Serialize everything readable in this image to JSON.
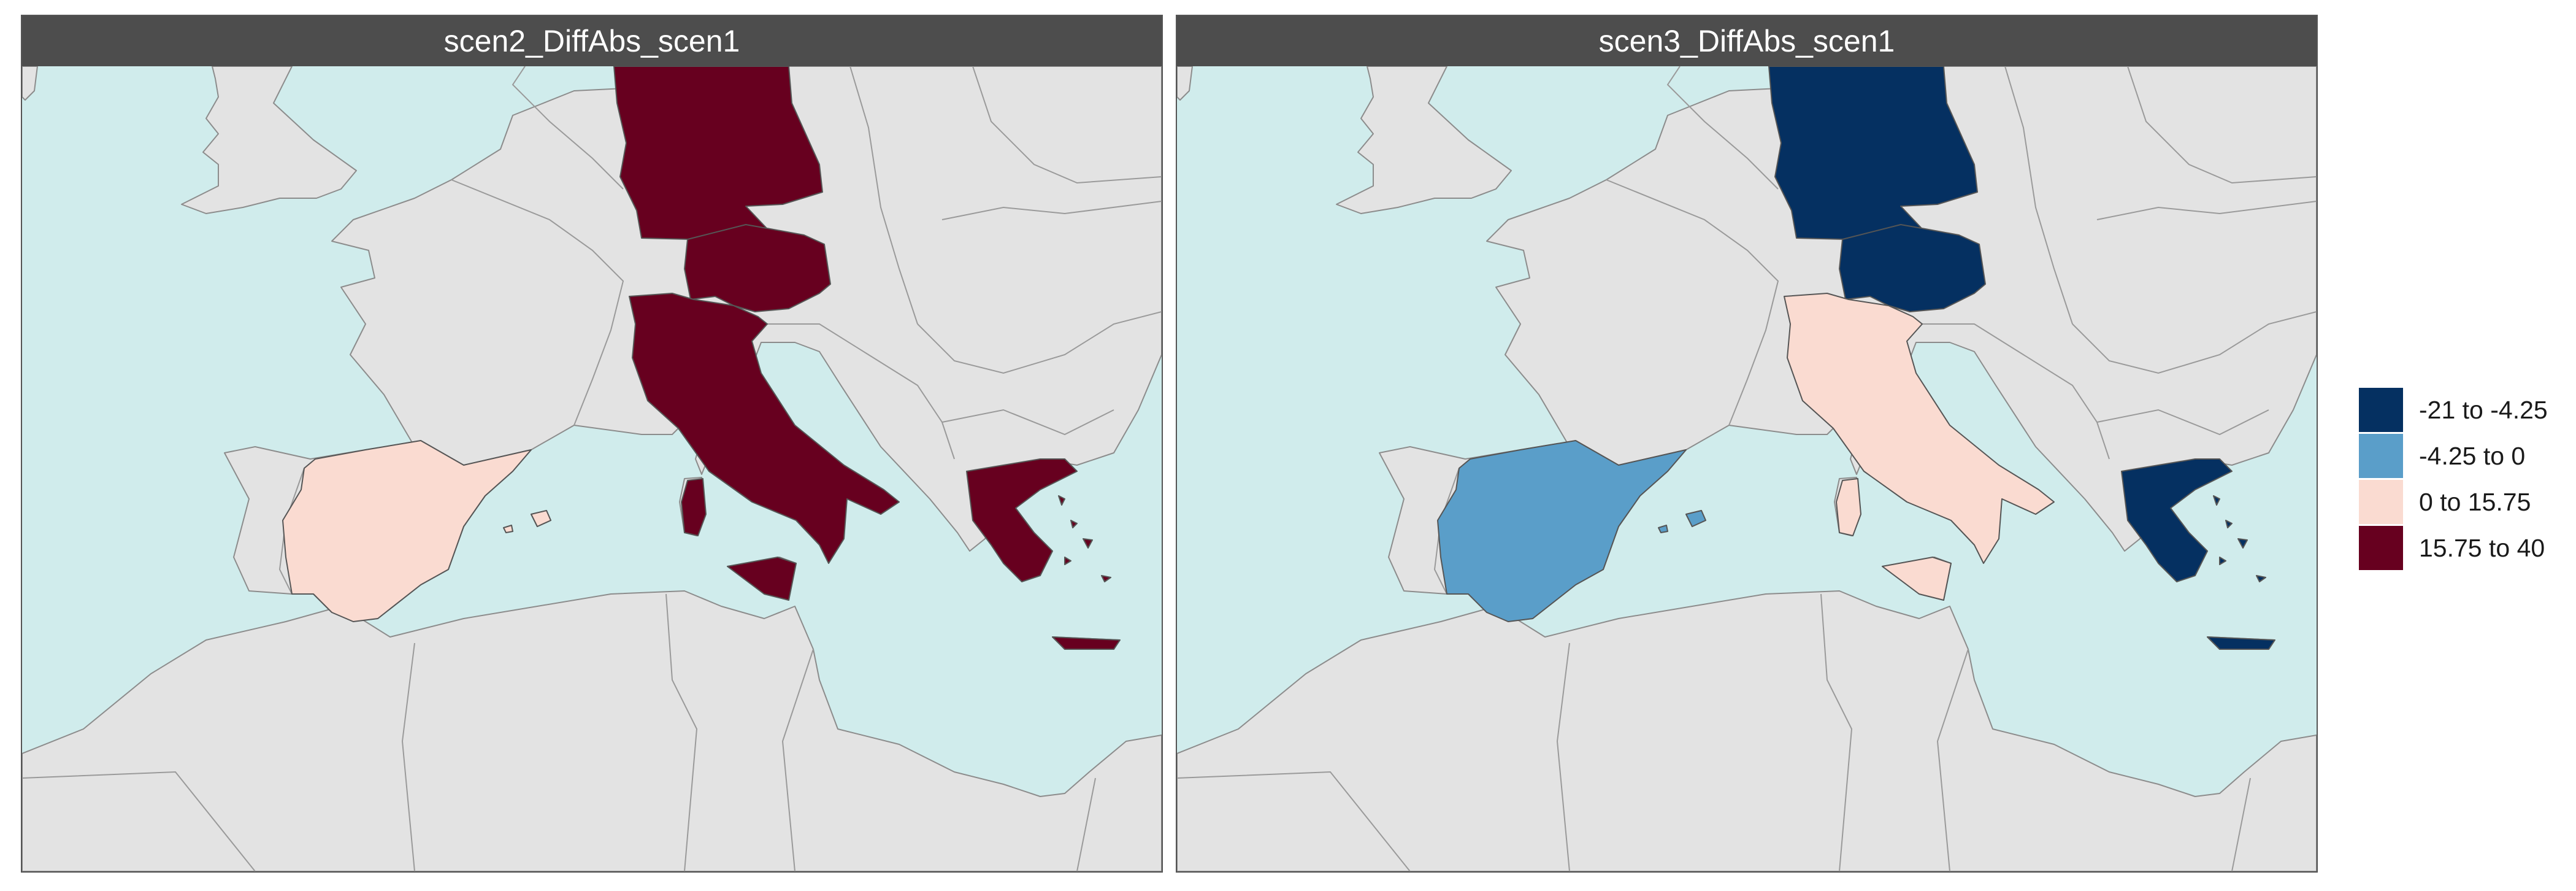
{
  "panels": [
    {
      "title": "scen2_DiffAbs_scen1",
      "regions": [
        {
          "country": "Germany",
          "class": "15.75 to 40"
        },
        {
          "country": "Austria",
          "class": "15.75 to 40"
        },
        {
          "country": "Italy",
          "class": "15.75 to 40"
        },
        {
          "country": "Greece",
          "class": "15.75 to 40"
        },
        {
          "country": "Spain",
          "class": "0 to 15.75"
        }
      ]
    },
    {
      "title": "scen3_DiffAbs_scen1",
      "regions": [
        {
          "country": "Germany",
          "class": "-21 to -4.25"
        },
        {
          "country": "Austria",
          "class": "-21 to -4.25"
        },
        {
          "country": "Greece",
          "class": "-21 to -4.25"
        },
        {
          "country": "Italy",
          "class": "0 to 15.75"
        },
        {
          "country": "Spain",
          "class": "-4.25 to 0"
        }
      ]
    }
  ],
  "legend": [
    {
      "label": "-21 to -4.25",
      "color": "#053061"
    },
    {
      "label": "-4.25 to 0",
      "color": "#5a9ec9"
    },
    {
      "label": "0 to 15.75",
      "color": "#fadbd1"
    },
    {
      "label": "15.75 to 40",
      "color": "#67001f"
    }
  ],
  "colors": {
    "sea": "#d0ecec",
    "land": "#e3e3e3",
    "strip": "#4d4d4d"
  }
}
